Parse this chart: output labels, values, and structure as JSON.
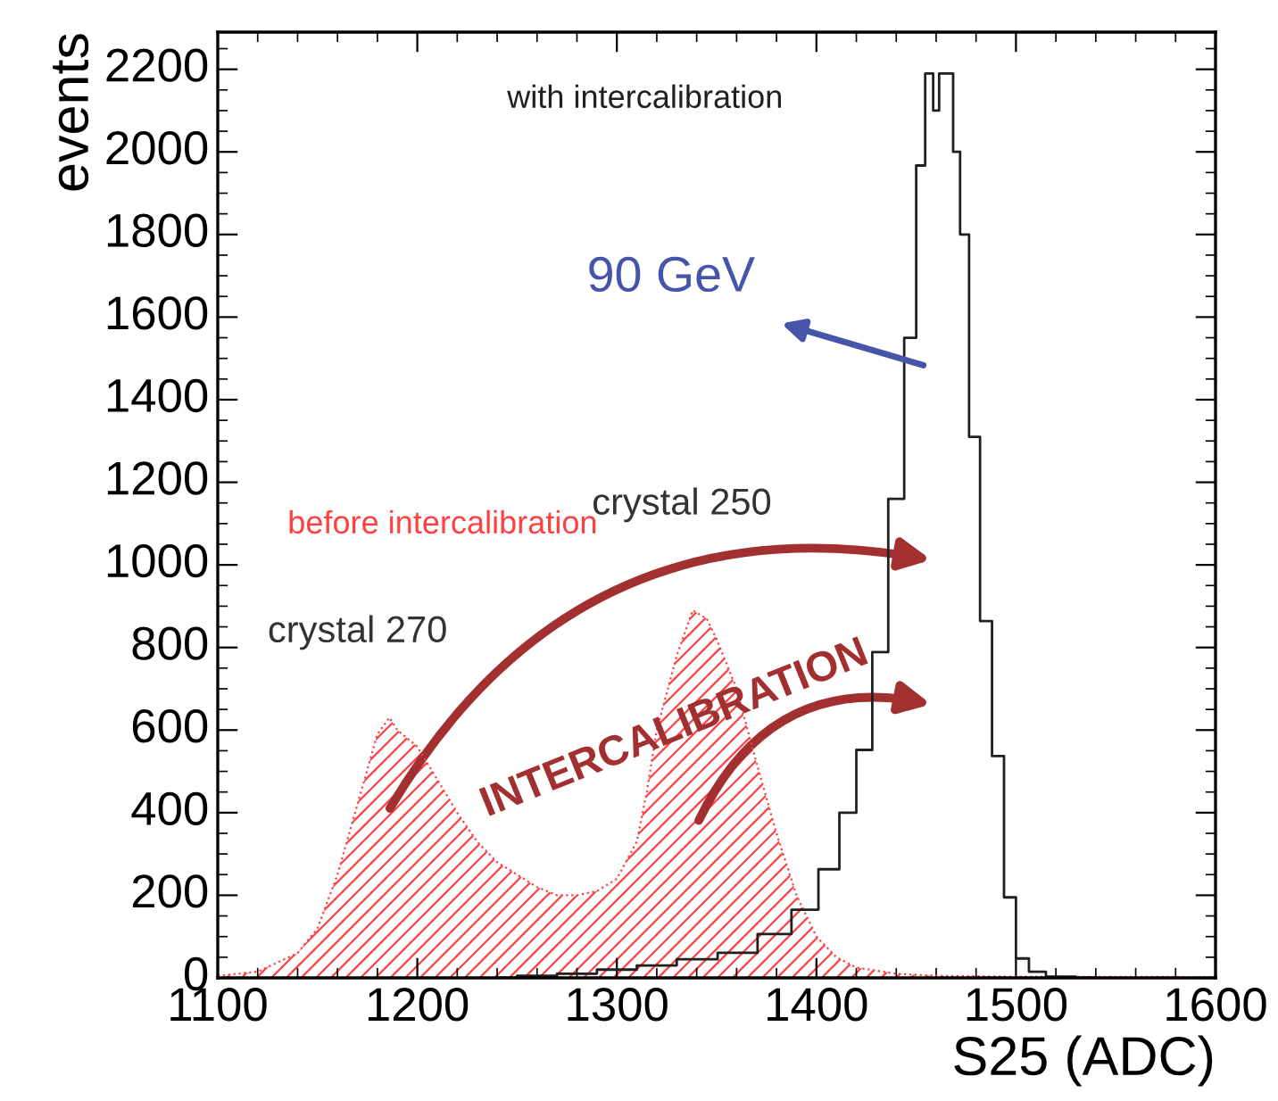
{
  "chart_data": {
    "type": "step",
    "xlabel": "S25 (ADC)",
    "ylabel": "events",
    "xlim": [
      1100,
      1600
    ],
    "xticks": [
      1100,
      1200,
      1300,
      1400,
      1500,
      1600
    ],
    "ylim": [
      0,
      2290
    ],
    "yticks": [
      0,
      200,
      400,
      600,
      800,
      1000,
      1200,
      1400,
      1600,
      1800,
      2000,
      2200
    ],
    "grid": false,
    "series": [
      {
        "name": "before intercalibration",
        "type": "area",
        "color": "#ff4040",
        "x": [
          1100,
          1120,
          1140,
          1150,
          1160,
          1170,
          1180,
          1186,
          1190,
          1200,
          1210,
          1220,
          1230,
          1240,
          1250,
          1260,
          1270,
          1280,
          1290,
          1300,
          1310,
          1315,
          1320,
          1330,
          1338,
          1345,
          1350,
          1360,
          1370,
          1380,
          1390,
          1400,
          1410,
          1420,
          1440,
          1460,
          1500,
          1600
        ],
        "values": [
          5,
          15,
          60,
          120,
          250,
          420,
          590,
          630,
          600,
          560,
          480,
          400,
          330,
          280,
          250,
          220,
          200,
          200,
          210,
          240,
          330,
          450,
          600,
          780,
          890,
          870,
          820,
          700,
          520,
          350,
          200,
          100,
          50,
          25,
          10,
          5,
          3,
          2
        ]
      },
      {
        "name": "with intercalibration",
        "color": "#202020",
        "x": [
          1240,
          1260,
          1280,
          1300,
          1320,
          1340,
          1361,
          1380,
          1395,
          1407,
          1416,
          1424,
          1432,
          1440,
          1448,
          1452,
          1457,
          1460,
          1463,
          1467,
          1470,
          1474,
          1479,
          1485,
          1491,
          1497,
          1503,
          1510,
          1520,
          1540
        ],
        "values": [
          0,
          5,
          10,
          20,
          30,
          45,
          61,
          106,
          165,
          263,
          400,
          552,
          789,
          1160,
          1550,
          1967,
          2190,
          2100,
          2190,
          2190,
          2000,
          1800,
          1310,
          864,
          537,
          195,
          47,
          15,
          3,
          0
        ]
      }
    ],
    "annotations": [
      "90 GeV",
      "crystal 270",
      "crystal 250",
      "INTERCALIBRATION"
    ]
  }
}
